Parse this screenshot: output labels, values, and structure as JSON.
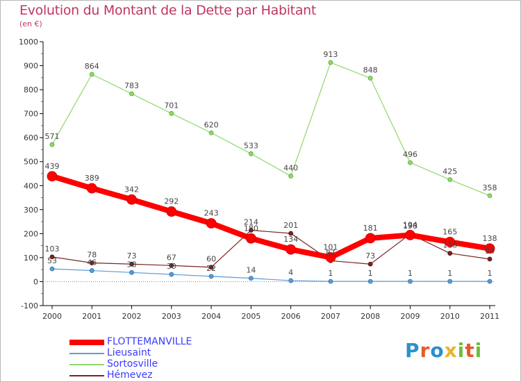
{
  "chart": {
    "title": "Evolution du Montant de la Dette par Habitant",
    "unit_label": "(en €)"
  },
  "chart_data": {
    "type": "line",
    "title": "Evolution du Montant de la Dette par Habitant",
    "subtitle": "(en €)",
    "x": [
      "2000",
      "2001",
      "2002",
      "2003",
      "2004",
      "2005",
      "2006",
      "2007",
      "2008",
      "2009",
      "2010",
      "2011"
    ],
    "ylim": [
      -100,
      1000
    ],
    "yticks": [
      "-100",
      "0",
      "100",
      "200",
      "300",
      "400",
      "500",
      "600",
      "700",
      "800",
      "900",
      "1000"
    ],
    "grid": false,
    "legend_position": "bottom-left",
    "series": [
      {
        "name": "FLOTTEMANVILLE",
        "color": "#ff0000",
        "values": [
          439,
          389,
          342,
          292,
          243,
          180,
          134,
          101,
          181,
          194,
          165,
          138
        ]
      },
      {
        "name": "Lieusaint",
        "color": "#5b9bd5",
        "values": [
          53,
          46,
          38,
          30,
          22,
          14,
          4,
          1,
          1,
          1,
          1,
          1
        ]
      },
      {
        "name": "Sortosville",
        "color": "#8fd86b",
        "values": [
          571,
          864,
          783,
          701,
          620,
          533,
          440,
          913,
          848,
          496,
          425,
          358
        ]
      },
      {
        "name": "Hémevez",
        "color": "#7b2323",
        "values": [
          103,
          78,
          73,
          67,
          60,
          214,
          201,
          87,
          73,
          198,
          118,
          94
        ]
      }
    ]
  },
  "legend": {
    "items": [
      "FLOTTEMANVILLE",
      "Lieusaint",
      "Sortosville",
      "Hémevez"
    ]
  },
  "logo": {
    "text": "Proxiti"
  }
}
